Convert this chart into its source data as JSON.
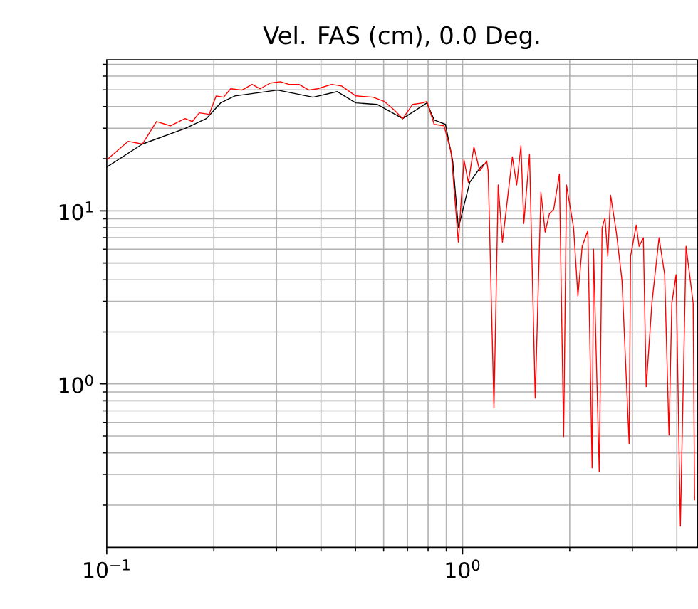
{
  "chart_data": {
    "type": "line",
    "title": "Vel. FAS (cm), 0.0 Deg.",
    "log": "xy",
    "grid": true,
    "marker": "none",
    "line_style": "solid",
    "xlim": [
      0.1,
      4.57
    ],
    "ylim": [
      0.114,
      74.6
    ],
    "xticks": [
      {
        "value": 0.1,
        "label": "10$^{−1}$"
      },
      {
        "value": 1,
        "label": "10$^{0}$"
      }
    ],
    "yticks": [
      {
        "value": 1,
        "label": "10$^{0}$"
      },
      {
        "value": 10,
        "label": "10$^{1}$"
      }
    ],
    "series": [
      {
        "color": "#000000",
        "x": [
          0.1,
          0.1259,
          0.166,
          0.1905,
          0.2089,
          0.2291,
          0.302,
          0.38,
          0.4446,
          0.501,
          0.575,
          0.679,
          0.724,
          0.794,
          0.832,
          0.895,
          0.938,
          0.973,
          1.009,
          1.047,
          1.076,
          1.117,
          1.148
        ],
        "values": [
          17.9,
          24.3,
          29.9,
          34.1,
          42.0,
          46.1,
          49.8,
          45.3,
          48.8,
          42.0,
          41.2,
          34.1,
          null,
          42.0,
          33.5,
          31.6,
          19.4,
          7.97,
          null,
          14.6,
          null,
          17.6,
          18.6
        ]
      },
      {
        "color": "#ff0000",
        "x": [
          0.1,
          0.1148,
          0.1259,
          0.138,
          0.151,
          0.166,
          0.174,
          0.182,
          0.194,
          0.203,
          0.213,
          0.223,
          0.24,
          0.256,
          0.27,
          0.288,
          0.308,
          0.325,
          0.347,
          0.37,
          0.391,
          0.429,
          0.457,
          0.501,
          0.56,
          0.603,
          0.643,
          0.679,
          0.724,
          0.773,
          0.794,
          0.832,
          0.887,
          0.929,
          0.973,
          1.009,
          1.038,
          1.076,
          1.117,
          1.169,
          1.18,
          1.225,
          1.259,
          1.294,
          1.38,
          1.419,
          1.459,
          1.486,
          1.542,
          1.6,
          1.66,
          1.706,
          1.754,
          1.803,
          1.871,
          1.923,
          1.959,
          2.051,
          2.109,
          2.168,
          2.249,
          2.312,
          2.333,
          2.421,
          2.466,
          2.512,
          2.559,
          2.606,
          2.704,
          2.805,
          2.938,
          2.965,
          3.076,
          3.133,
          3.221,
          3.281,
          3.404,
          3.565,
          3.698,
          3.802,
          3.873,
          3.981,
          4.093,
          4.246,
          4.446,
          4.487
        ],
        "values": [
          19.7,
          25.2,
          24.3,
          32.8,
          31.0,
          34.1,
          32.8,
          36.8,
          36.1,
          46.1,
          45.3,
          50.7,
          49.8,
          53.7,
          50.7,
          54.7,
          55.7,
          53.7,
          53.7,
          49.8,
          50.7,
          53.7,
          52.6,
          46.1,
          45.3,
          42.8,
          38.2,
          34.1,
          41.2,
          42.0,
          42.8,
          31.6,
          31.0,
          21.7,
          6.6,
          19.7,
          14.6,
          23.4,
          17.0,
          19.4,
          17.0,
          0.726,
          14.1,
          6.6,
          20.5,
          14.1,
          23.8,
          8.44,
          21.3,
          0.828,
          12.8,
          7.54,
          9.63,
          10.2,
          16.3,
          0.497,
          14.1,
          7.97,
          3.22,
          6.24,
          7.68,
          0.328,
          6.01,
          0.31,
          7.97,
          9.1,
          5.47,
          12.3,
          7.54,
          3.97,
          0.453,
          5.47,
          8.28,
          6.24,
          6.99,
          0.964,
          2.93,
          6.99,
          4.28,
          0.507,
          2.93,
          4.28,
          0.151,
          6.24,
          2.93,
          0.213
        ]
      }
    ]
  }
}
